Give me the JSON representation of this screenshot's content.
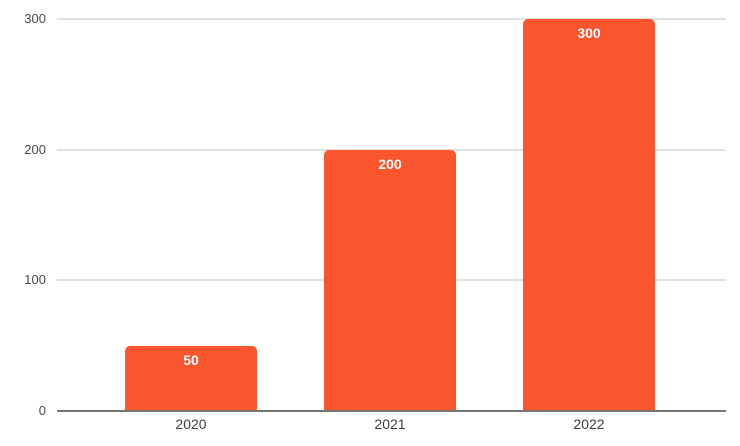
{
  "chart_data": {
    "type": "bar",
    "categories": [
      "2020",
      "2021",
      "2022"
    ],
    "values": [
      50,
      200,
      300
    ],
    "data_labels": [
      "50",
      "200",
      "300"
    ],
    "yticks": [
      0,
      100,
      200,
      300
    ],
    "ytick_labels": [
      "0",
      "100",
      "200",
      "300"
    ],
    "ylim": [
      0,
      300
    ],
    "grid": true,
    "legend": "none",
    "colors": {
      "bar": "#FA552D",
      "data_label": "#FFFFFF",
      "gridline": "#E0E0E0",
      "axis_line": "#757575",
      "y_tick_label": "#4A4A4A",
      "x_tick_label": "#3D3D3D",
      "background": "#FFFFFF"
    }
  }
}
